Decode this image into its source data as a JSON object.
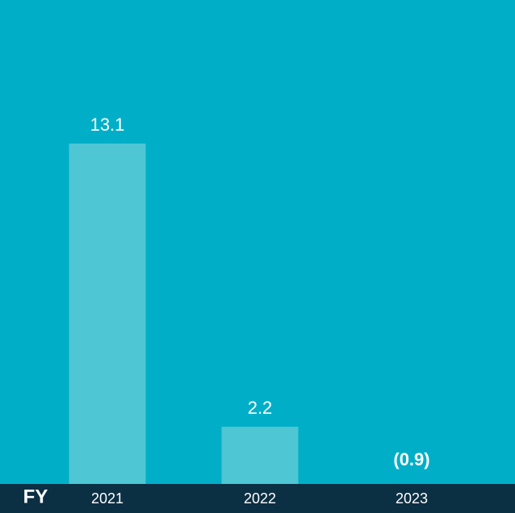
{
  "chart_data": {
    "type": "bar",
    "x_label": "FY",
    "categories": [
      "2021",
      "2022",
      "2023"
    ],
    "values": [
      13.1,
      2.2,
      -0.9
    ],
    "value_labels": [
      "13.1",
      "2.2",
      "(0.9)"
    ],
    "color": "#4ec6d4"
  }
}
